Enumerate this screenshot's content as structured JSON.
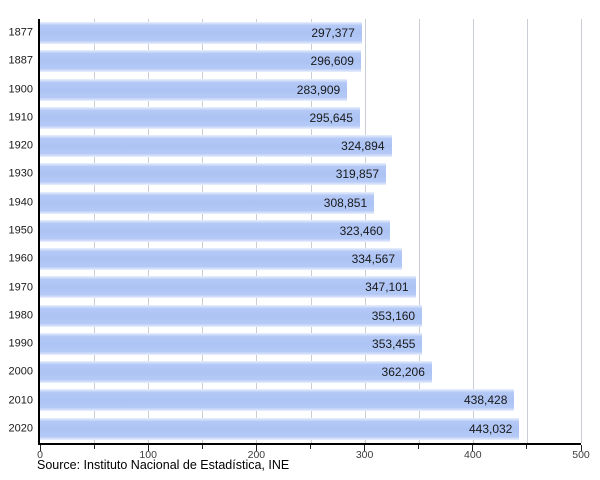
{
  "chart_data": {
    "type": "bar",
    "orientation": "horizontal",
    "title": "",
    "xlabel": "",
    "ylabel": "",
    "legend": "none",
    "categories": [
      "1877",
      "1887",
      "1900",
      "1910",
      "1920",
      "1930",
      "1940",
      "1950",
      "1960",
      "1970",
      "1980",
      "1990",
      "2000",
      "2010",
      "2020"
    ],
    "values": [
      297377,
      296609,
      283909,
      295645,
      324894,
      319857,
      308851,
      323460,
      334567,
      347101,
      353160,
      353455,
      362206,
      438428,
      443032
    ],
    "value_labels": [
      "297,377",
      "296,609",
      "283,909",
      "295,645",
      "324,894",
      "319,857",
      "308,851",
      "323,460",
      "334,567",
      "347,101",
      "353,160",
      "353,455",
      "362,206",
      "438,428",
      "443,032"
    ],
    "x_axis": {
      "max": 500000,
      "tick_labels": [
        "0",
        "100",
        "200",
        "300",
        "400",
        "500"
      ],
      "tick_unit": "thousands",
      "major_tick_step": 100,
      "minor_tick_step": 50
    },
    "grid": "vertical gridlines every 50 (thousands), light gray"
  },
  "source": {
    "text": "Source: Instituto Nacional de Estadística, INE"
  },
  "colors": {
    "bar_fill": "#acc3f3",
    "bar_edge_fade": "#eaf0fc",
    "gridline": "#c9cdd6",
    "axis": "#000000",
    "label_text": "#1a1a1a"
  }
}
